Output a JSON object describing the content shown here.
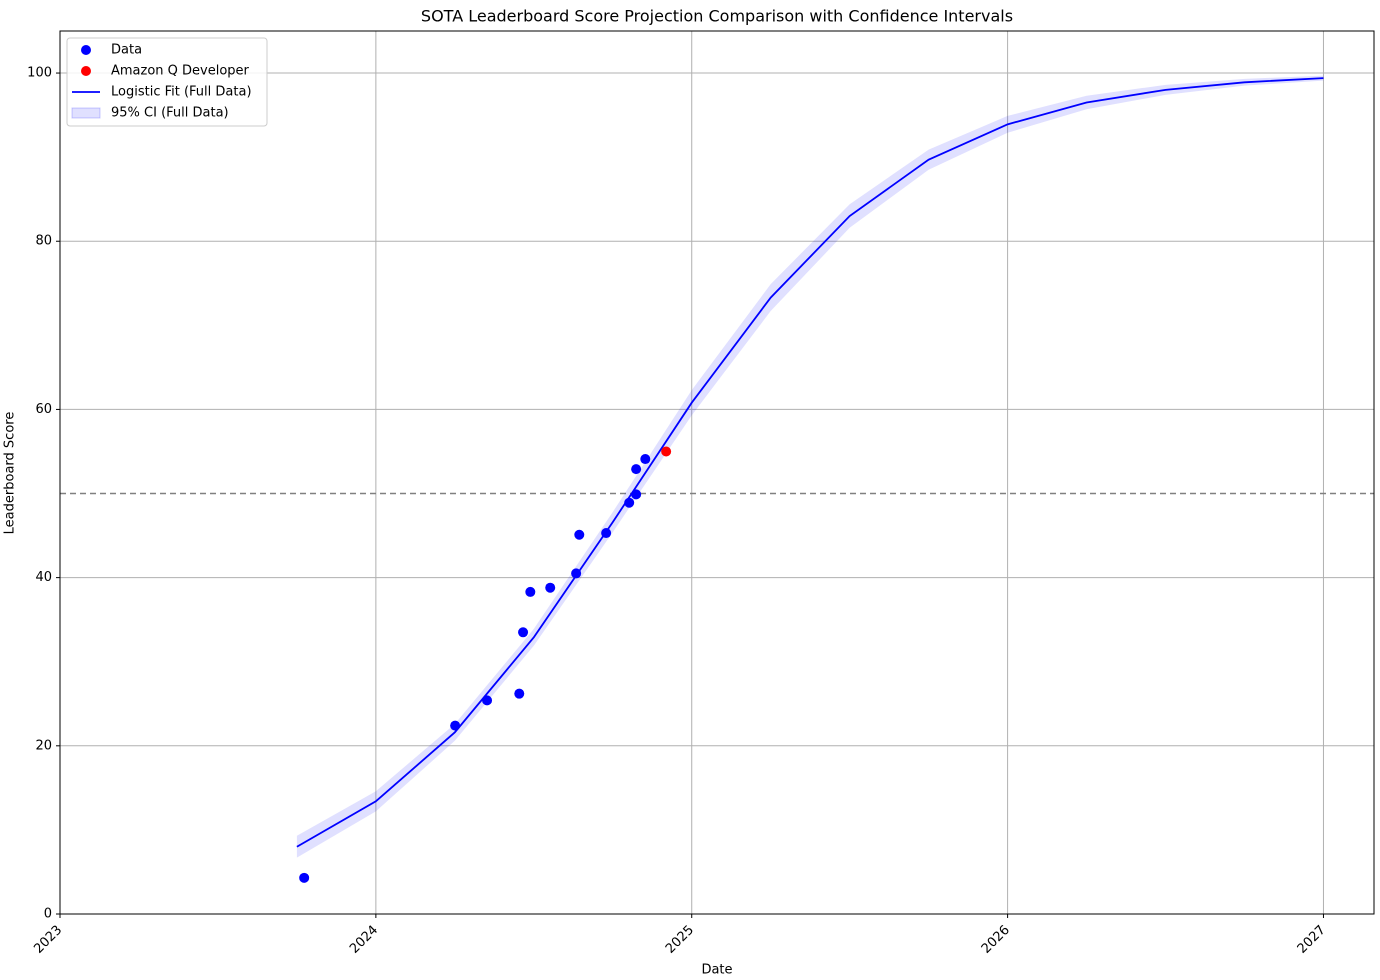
{
  "chart_data": {
    "type": "scatter",
    "title": "SOTA Leaderboard Score Projection Comparison with Confidence Intervals",
    "xlabel": "Date",
    "ylabel": "Leaderboard Score",
    "xlim": [
      2023,
      2027.16
    ],
    "ylim": [
      0,
      105
    ],
    "xticks": [
      2023,
      2024,
      2025,
      2026,
      2027
    ],
    "yticks": [
      0,
      20,
      40,
      60,
      80,
      100
    ],
    "grid": true,
    "legend": "upper-left",
    "hline": {
      "value": 50,
      "color": "#808080"
    },
    "series": [
      {
        "name": "Data",
        "type": "scatter",
        "color": "#0000ff",
        "x": [
          2023.773,
          2024.251,
          2024.352,
          2024.454,
          2024.466,
          2024.489,
          2024.552,
          2024.634,
          2024.644,
          2024.729,
          2024.802,
          2024.824,
          2024.824,
          2024.853
        ],
        "values": [
          4.3,
          22.4,
          25.4,
          26.2,
          33.5,
          38.3,
          38.8,
          40.5,
          45.1,
          45.3,
          48.9,
          49.9,
          52.9,
          54.1
        ]
      },
      {
        "name": "Amazon Q Developer",
        "type": "scatter",
        "color": "#ff0000",
        "x": [
          2024.919
        ],
        "values": [
          55.0
        ]
      },
      {
        "name": "Logistic Fit (Full Data)",
        "type": "line",
        "color": "#0000ff",
        "x": [
          2023.75,
          2024.0,
          2024.25,
          2024.5,
          2024.75,
          2025.0,
          2025.25,
          2025.5,
          2025.75,
          2026.0,
          2026.25,
          2026.5,
          2026.75,
          2027.0
        ],
        "values": [
          8.0,
          13.4,
          21.6,
          32.9,
          46.6,
          60.8,
          73.3,
          83.0,
          89.7,
          93.9,
          96.5,
          98.0,
          98.9,
          99.4
        ]
      },
      {
        "name": "95% CI (Full Data)",
        "type": "band",
        "color": "#0000ff",
        "x": [
          2023.75,
          2024.0,
          2024.25,
          2024.5,
          2024.75,
          2025.0,
          2025.25,
          2025.5,
          2025.75,
          2026.0,
          2026.25,
          2026.5,
          2026.75,
          2027.0
        ],
        "lower": [
          6.7,
          12.2,
          20.6,
          31.9,
          45.4,
          59.3,
          71.7,
          81.6,
          88.5,
          92.9,
          95.7,
          97.4,
          98.5,
          99.1
        ],
        "upper": [
          9.3,
          14.6,
          22.6,
          33.9,
          47.8,
          62.3,
          74.9,
          84.4,
          90.9,
          94.9,
          97.3,
          98.6,
          99.3,
          99.7
        ]
      }
    ]
  }
}
